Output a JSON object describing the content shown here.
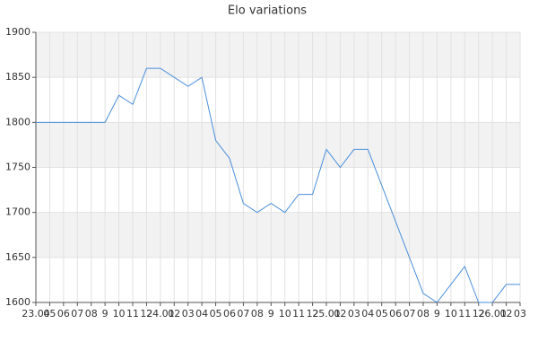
{
  "chart_data": {
    "type": "line",
    "title": "Elo variations",
    "categories": [
      "23.04",
      "05",
      "06",
      "07",
      "08",
      "9",
      "10",
      "11",
      "12",
      "24.01",
      "02",
      "03",
      "04",
      "05",
      "06",
      "07",
      "08",
      "9",
      "10",
      "11",
      "12",
      "25.01",
      "02",
      "03",
      "04",
      "05",
      "06",
      "07",
      "08",
      "9",
      "10",
      "11",
      "12",
      "26.01",
      "02",
      "03"
    ],
    "series": [
      {
        "name": "Elo",
        "color": "#4a8fdc",
        "values": [
          1800,
          1800,
          1800,
          1800,
          1800,
          1800,
          1830,
          1820,
          1860,
          1860,
          1850,
          1840,
          1850,
          1780,
          1760,
          1710,
          1700,
          1710,
          1700,
          1720,
          1720,
          1770,
          1750,
          1770,
          1770,
          1730,
          1690,
          1650,
          1610,
          1600,
          1620,
          1640,
          1600,
          1600,
          1620,
          1620
        ]
      }
    ],
    "ylim": [
      1600,
      1900
    ],
    "yticks": [
      1600,
      1650,
      1700,
      1750,
      1800,
      1850,
      1900
    ],
    "grid": true,
    "legend": false
  }
}
